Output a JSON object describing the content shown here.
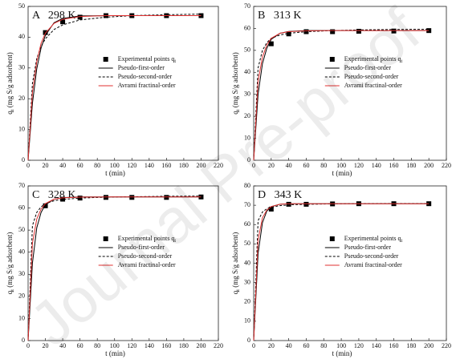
{
  "watermark": "Journal Pre-proof",
  "chart_data": [
    {
      "type": "line",
      "title": "A   298 K",
      "xlabel": "t (min)",
      "ylabel": [
        "q",
        "t",
        " (mg S/g adsorbent)"
      ],
      "xlim": [
        0,
        220
      ],
      "xticks": [
        0,
        20,
        40,
        60,
        80,
        100,
        120,
        140,
        160,
        180,
        200,
        220
      ],
      "ylim": [
        0,
        50
      ],
      "yticks": [
        0,
        10,
        20,
        30,
        40,
        50
      ],
      "legend": "center",
      "series": [
        {
          "name": [
            "Experimental points q",
            "t"
          ],
          "type": "scatter",
          "color": "#000000",
          "x": [
            20,
            40,
            60,
            90,
            120,
            160,
            200
          ],
          "values": [
            41.5,
            45,
            46.5,
            47,
            47,
            47,
            47
          ]
        },
        {
          "name": [
            "Pseudo-first-order"
          ],
          "type": "line",
          "linestyle": "solid",
          "color": "#000000",
          "x": [
            0,
            5,
            10,
            15,
            20,
            30,
            40,
            60,
            90,
            120,
            160,
            200
          ],
          "values": [
            0,
            18.5,
            29.7,
            36.5,
            40.6,
            44.7,
            46.1,
            46.9,
            47,
            47,
            47,
            47
          ]
        },
        {
          "name": [
            "Pseudo-second-order"
          ],
          "type": "line",
          "linestyle": "dashed",
          "color": "#000000",
          "x": [
            0,
            5,
            10,
            15,
            20,
            30,
            40,
            60,
            90,
            120,
            160,
            200
          ],
          "values": [
            0,
            25,
            33,
            37,
            39.5,
            42.5,
            44,
            45.6,
            46.5,
            47,
            47.3,
            47.5
          ]
        },
        {
          "name": [
            "Avrami fractinal-order"
          ],
          "type": "line",
          "linestyle": "solid",
          "color": "#e03030",
          "x": [
            0,
            5,
            10,
            15,
            20,
            30,
            40,
            60,
            90,
            120,
            160,
            200
          ],
          "values": [
            0,
            22,
            32,
            38,
            41.3,
            44.5,
            45.8,
            46.7,
            47,
            47,
            47,
            47
          ]
        }
      ]
    },
    {
      "type": "line",
      "title": "B   313 K",
      "xlabel": "t (min)",
      "ylabel": [
        "q",
        "t",
        " (mg S/g adsorbent)"
      ],
      "xlim": [
        0,
        220
      ],
      "xticks": [
        0,
        20,
        40,
        60,
        80,
        100,
        120,
        140,
        160,
        180,
        200,
        220
      ],
      "ylim": [
        0,
        70
      ],
      "yticks": [
        0,
        10,
        20,
        30,
        40,
        50,
        60,
        70
      ],
      "legend": "center",
      "series": [
        {
          "name": [
            "Experimental points q",
            "t"
          ],
          "type": "scatter",
          "color": "#000000",
          "x": [
            20,
            40,
            60,
            90,
            120,
            160,
            200
          ],
          "values": [
            53,
            57.5,
            58.5,
            58.5,
            58.7,
            58.8,
            59
          ]
        },
        {
          "name": [
            "Pseudo-first-order"
          ],
          "type": "line",
          "linestyle": "solid",
          "color": "#000000",
          "x": [
            0,
            5,
            10,
            15,
            20,
            30,
            40,
            60,
            90,
            120,
            160,
            200
          ],
          "values": [
            0,
            30,
            44,
            51,
            55,
            57.8,
            58.6,
            59,
            59,
            59,
            59,
            59
          ]
        },
        {
          "name": [
            "Pseudo-second-order"
          ],
          "type": "line",
          "linestyle": "dashed",
          "color": "#000000",
          "x": [
            0,
            5,
            10,
            15,
            20,
            30,
            40,
            60,
            90,
            120,
            160,
            200
          ],
          "values": [
            0,
            42,
            50,
            53.5,
            55.5,
            57,
            57.8,
            58.5,
            59,
            59.3,
            59.5,
            59.6
          ]
        },
        {
          "name": [
            "Avrami fractinal-order"
          ],
          "type": "line",
          "linestyle": "solid",
          "color": "#e03030",
          "x": [
            0,
            5,
            10,
            15,
            20,
            30,
            40,
            60,
            90,
            120,
            160,
            200
          ],
          "values": [
            0,
            36,
            47,
            52.5,
            55.5,
            57.8,
            58.5,
            58.9,
            59,
            59,
            59,
            59
          ]
        }
      ]
    },
    {
      "type": "line",
      "title": "C   328 K",
      "xlabel": "t (min)",
      "ylabel": [
        "q",
        "t",
        " (mg S/g adsorbent)"
      ],
      "xlim": [
        0,
        220
      ],
      "xticks": [
        0,
        20,
        40,
        60,
        80,
        100,
        120,
        140,
        160,
        180,
        200,
        220
      ],
      "ylim": [
        0,
        70
      ],
      "yticks": [
        0,
        10,
        20,
        30,
        40,
        50,
        60,
        70
      ],
      "legend": "center",
      "series": [
        {
          "name": [
            "Experimental points q",
            "t"
          ],
          "type": "scatter",
          "color": "#000000",
          "x": [
            20,
            40,
            60,
            90,
            120,
            160,
            200
          ],
          "values": [
            61,
            64,
            64.5,
            64.8,
            64.8,
            64.8,
            65
          ]
        },
        {
          "name": [
            "Pseudo-first-order"
          ],
          "type": "line",
          "linestyle": "solid",
          "color": "#000000",
          "x": [
            0,
            5,
            10,
            15,
            20,
            30,
            40,
            60,
            90,
            120,
            160,
            200
          ],
          "values": [
            0,
            35,
            51,
            58,
            61.5,
            64,
            64.7,
            65,
            65,
            65,
            65,
            65
          ]
        },
        {
          "name": [
            "Pseudo-second-order"
          ],
          "type": "line",
          "linestyle": "dashed",
          "color": "#000000",
          "x": [
            0,
            5,
            10,
            15,
            20,
            30,
            40,
            60,
            90,
            120,
            160,
            200
          ],
          "values": [
            0,
            52,
            58,
            60.5,
            62,
            63.3,
            63.9,
            64.5,
            64.9,
            65.1,
            65.3,
            65.4
          ]
        },
        {
          "name": [
            "Avrami fractinal-order"
          ],
          "type": "line",
          "linestyle": "solid",
          "color": "#e03030",
          "x": [
            0,
            5,
            10,
            15,
            20,
            30,
            40,
            60,
            90,
            120,
            160,
            200
          ],
          "values": [
            0,
            44,
            55,
            59.5,
            62,
            64,
            64.6,
            64.9,
            65,
            65,
            65,
            65
          ]
        }
      ]
    },
    {
      "type": "line",
      "title": "D   343 K",
      "xlabel": "t (min)",
      "ylabel": [
        "q",
        "t",
        " (mg S/g adsorbent)"
      ],
      "xlim": [
        0,
        220
      ],
      "xticks": [
        0,
        20,
        40,
        60,
        80,
        100,
        120,
        140,
        160,
        180,
        200,
        220
      ],
      "ylim": [
        0,
        80
      ],
      "yticks": [
        0,
        10,
        20,
        30,
        40,
        50,
        60,
        70,
        80
      ],
      "legend": "center",
      "series": [
        {
          "name": [
            "Experimental points q",
            "t"
          ],
          "type": "scatter",
          "color": "#000000",
          "x": [
            20,
            40,
            60,
            90,
            120,
            160,
            200
          ],
          "values": [
            68,
            70.5,
            70.5,
            70.7,
            70.8,
            70.8,
            70.8
          ]
        },
        {
          "name": [
            "Pseudo-first-order"
          ],
          "type": "line",
          "linestyle": "solid",
          "color": "#000000",
          "x": [
            0,
            5,
            10,
            15,
            20,
            30,
            40,
            60,
            90,
            120,
            160,
            200
          ],
          "values": [
            0,
            45,
            61,
            67,
            69.3,
            70.5,
            70.8,
            70.8,
            70.8,
            70.8,
            70.8,
            70.8
          ]
        },
        {
          "name": [
            "Pseudo-second-order"
          ],
          "type": "line",
          "linestyle": "dashed",
          "color": "#000000",
          "x": [
            0,
            5,
            10,
            15,
            20,
            30,
            40,
            60,
            90,
            120,
            160,
            200
          ],
          "values": [
            0,
            62,
            66.5,
            68.2,
            69,
            69.8,
            70.2,
            70.5,
            70.7,
            70.8,
            70.9,
            70.9
          ]
        },
        {
          "name": [
            "Avrami fractinal-order"
          ],
          "type": "line",
          "linestyle": "solid",
          "color": "#e03030",
          "x": [
            0,
            5,
            10,
            15,
            20,
            30,
            40,
            60,
            90,
            120,
            160,
            200
          ],
          "values": [
            0,
            52,
            63.5,
            67.5,
            69.3,
            70.5,
            70.8,
            70.8,
            70.8,
            70.8,
            70.8,
            70.8
          ]
        }
      ]
    }
  ]
}
